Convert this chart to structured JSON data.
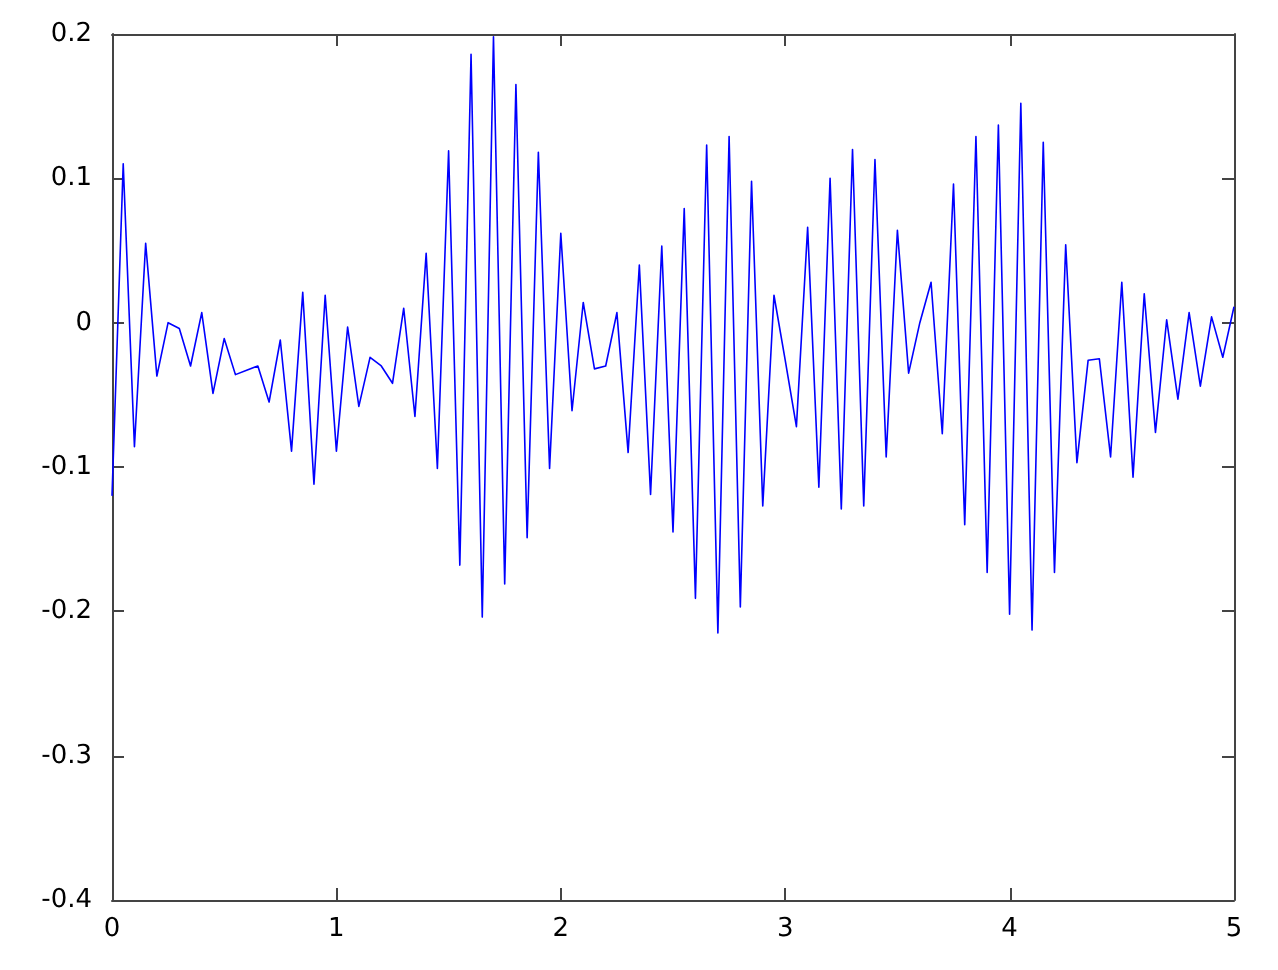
{
  "chart_data": {
    "type": "line",
    "x": [
      0,
      0.05,
      0.1,
      0.15,
      0.2,
      0.25,
      0.3,
      0.35,
      0.4,
      0.45,
      0.5,
      0.55,
      0.6,
      0.65,
      0.7,
      0.75,
      0.8,
      0.85,
      0.9,
      0.95,
      1,
      1.05,
      1.1,
      1.15,
      1.2,
      1.25,
      1.3,
      1.35,
      1.4,
      1.45,
      1.5,
      1.55,
      1.6,
      1.65,
      1.7,
      1.75,
      1.8,
      1.85,
      1.9,
      1.95,
      2,
      2.05,
      2.1,
      2.15,
      2.2,
      2.25,
      2.3,
      2.35,
      2.4,
      2.45,
      2.5,
      2.55,
      2.6,
      2.65,
      2.7,
      2.75,
      2.8,
      2.85,
      2.9,
      2.95,
      3,
      3.05,
      3.1,
      3.15,
      3.2,
      3.25,
      3.3,
      3.35,
      3.4,
      3.45,
      3.5,
      3.55,
      3.6,
      3.65,
      3.7,
      3.75,
      3.8,
      3.85,
      3.9,
      3.95,
      4,
      4.05,
      4.1,
      4.15,
      4.2,
      4.25,
      4.3,
      4.35,
      4.4,
      4.45,
      4.5,
      4.55,
      4.6,
      4.65,
      4.7,
      4.75,
      4.8,
      4.85,
      4.9,
      4.95,
      5
    ],
    "series": [
      {
        "color": "#0000ff",
        "values": [
          -0.12,
          0.11,
          -0.086,
          0.055,
          -0.037,
          0,
          -0.004,
          -0.03,
          0.007,
          -0.049,
          -0.011,
          -0.036,
          -0.033,
          -0.03,
          -0.055,
          -0.012,
          -0.089,
          0.021,
          -0.112,
          0.019,
          -0.089,
          -0.003,
          -0.058,
          -0.024,
          -0.03,
          -0.042,
          0.01,
          -0.065,
          0.048,
          -0.101,
          0.119,
          -0.168,
          0.186,
          -0.204,
          0.198,
          -0.181,
          0.165,
          -0.149,
          0.118,
          -0.101,
          0.062,
          -0.061,
          0.014,
          -0.032,
          -0.03,
          0.007,
          -0.09,
          0.04,
          -0.119,
          0.053,
          -0.145,
          0.079,
          -0.191,
          0.123,
          -0.215,
          0.129,
          -0.197,
          0.098,
          -0.127,
          0.019,
          -0.026,
          -0.072,
          0.066,
          -0.114,
          0.1,
          -0.129,
          0.12,
          -0.127,
          0.113,
          -0.093,
          0.064,
          -0.035,
          0,
          0.028,
          -0.077,
          0.096,
          -0.14,
          0.129,
          -0.173,
          0.137,
          -0.202,
          0.152,
          -0.213,
          0.125,
          -0.173,
          0.054,
          -0.097,
          -0.026,
          -0.025,
          -0.093,
          0.028,
          -0.107,
          0.02,
          -0.076,
          0.002,
          -0.053,
          0.007,
          -0.044,
          0.004,
          -0.024,
          0.011
        ]
      }
    ],
    "xlim": [
      0,
      5
    ],
    "xticks": [
      0,
      1,
      2,
      3,
      4,
      5
    ],
    "ylim": [
      -0.4,
      0.2
    ],
    "yticks": [
      -0.4,
      -0.3,
      -0.2,
      -0.1,
      0,
      0.1,
      0.2
    ],
    "grid": false,
    "marker": "none",
    "line_style": "solid"
  }
}
